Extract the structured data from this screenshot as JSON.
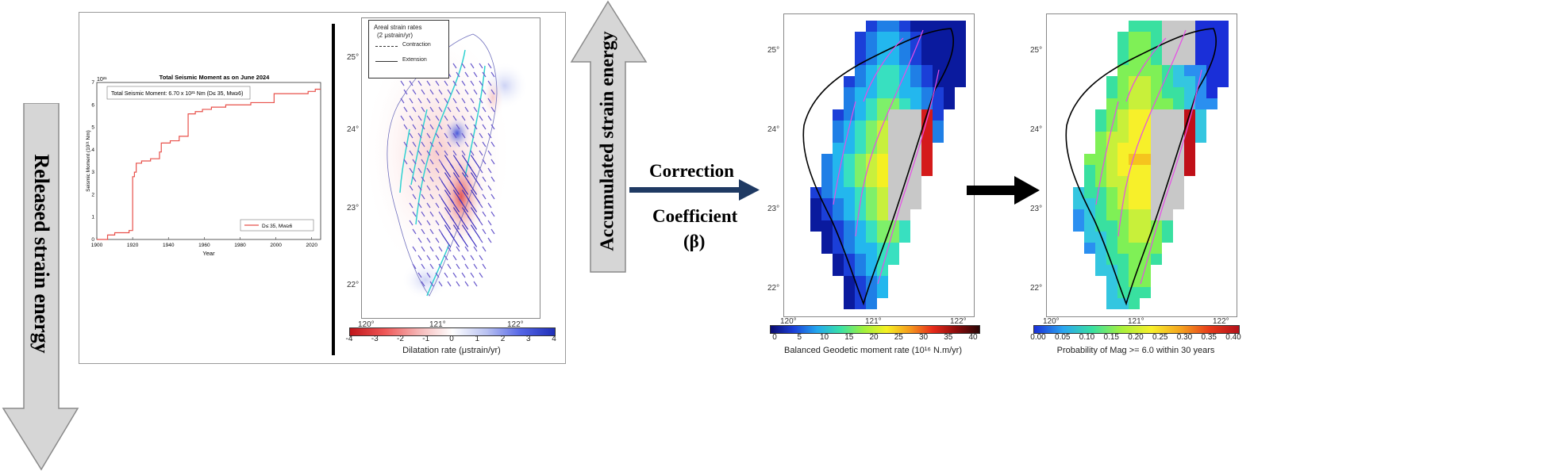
{
  "flow": {
    "released_label": "Released strain energy",
    "accumulated_label": "Accumulated strain energy",
    "correction_label": "Correction",
    "coefficient_label": "Coefficient",
    "beta_label": "(β)"
  },
  "moment_chart": {
    "title": "Total Seismic Moment as on June 2024",
    "exponent": "10²¹",
    "box_text": "Total Seismic Moment: 6.70 x 10²¹ Nm (D≤ 35, Mw≥6)",
    "ylabel": "Seismic Moment (10²¹ Nm)",
    "xlabel": "Year",
    "legend": "D≤ 35, Mw≥6",
    "xticks": [
      "1900",
      "1920",
      "1940",
      "1960",
      "1980",
      "2000",
      "2020"
    ],
    "yticks": [
      "0",
      "1",
      "2",
      "3",
      "4",
      "5",
      "6",
      "7"
    ]
  },
  "dilatation_map": {
    "legend_title": "Areal strain rates",
    "legend_subtitle": "(2 μstrain/yr)",
    "legend_contraction": "Contraction",
    "legend_extension": "Extension",
    "lat_ticks": [
      "25°",
      "24°",
      "23°",
      "22°"
    ],
    "lon_ticks": [
      "120°",
      "121°",
      "122°"
    ],
    "colorbar_ticks": [
      "-4",
      "-3",
      "-2",
      "-1",
      "0",
      "1",
      "2",
      "3",
      "4"
    ],
    "colorbar_label": "Dilatation rate (μstrain/yr)",
    "colors": {
      "negative": "#d62728",
      "positive": "#2b3fd6"
    }
  },
  "moment_rate_map": {
    "lat_ticks": [
      "25°",
      "24°",
      "23°",
      "22°"
    ],
    "lon_ticks": [
      "120°",
      "121°",
      "122°"
    ],
    "colorbar_ticks": [
      "0",
      "5",
      "10",
      "15",
      "20",
      "25",
      "30",
      "35",
      "40"
    ],
    "colorbar_label": "Balanced Geodetic moment rate (10¹⁶ N.m/yr)"
  },
  "probability_map": {
    "lat_ticks": [
      "25°",
      "24°",
      "23°",
      "22°"
    ],
    "lon_ticks": [
      "120°",
      "121°",
      "122°"
    ],
    "colorbar_ticks": [
      "0.00",
      "0.05",
      "0.10",
      "0.15",
      "0.20",
      "0.25",
      "0.30",
      "0.35",
      "0.40"
    ],
    "colorbar_label": "Probability of Mag >= 6.0 within 30 years"
  },
  "chart_data": {
    "type": "line",
    "title": "Total Seismic Moment as on June 2024",
    "xlabel": "Year",
    "ylabel": "Seismic Moment (10²¹ Nm)",
    "xlim": [
      1900,
      2025
    ],
    "ylim": [
      0,
      7
    ],
    "series": [
      {
        "name": "D≤ 35, Mw≥6",
        "color": "#e8504a",
        "x": [
          1900,
          1906,
          1910,
          1918,
          1920,
          1921,
          1922,
          1925,
          1930,
          1935,
          1936,
          1941,
          1946,
          1951,
          1955,
          1959,
          1963,
          1964,
          1972,
          1986,
          1990,
          1999,
          2002,
          2010,
          2018,
          2022,
          2024
        ],
        "y": [
          0,
          0.2,
          0.3,
          0.4,
          2.8,
          3.0,
          3.4,
          3.5,
          3.6,
          3.9,
          4.3,
          4.4,
          4.6,
          5.6,
          5.7,
          5.8,
          5.8,
          5.9,
          6.0,
          6.1,
          6.1,
          6.5,
          6.5,
          6.5,
          6.6,
          6.7,
          6.7
        ],
        "step": true
      }
    ]
  }
}
